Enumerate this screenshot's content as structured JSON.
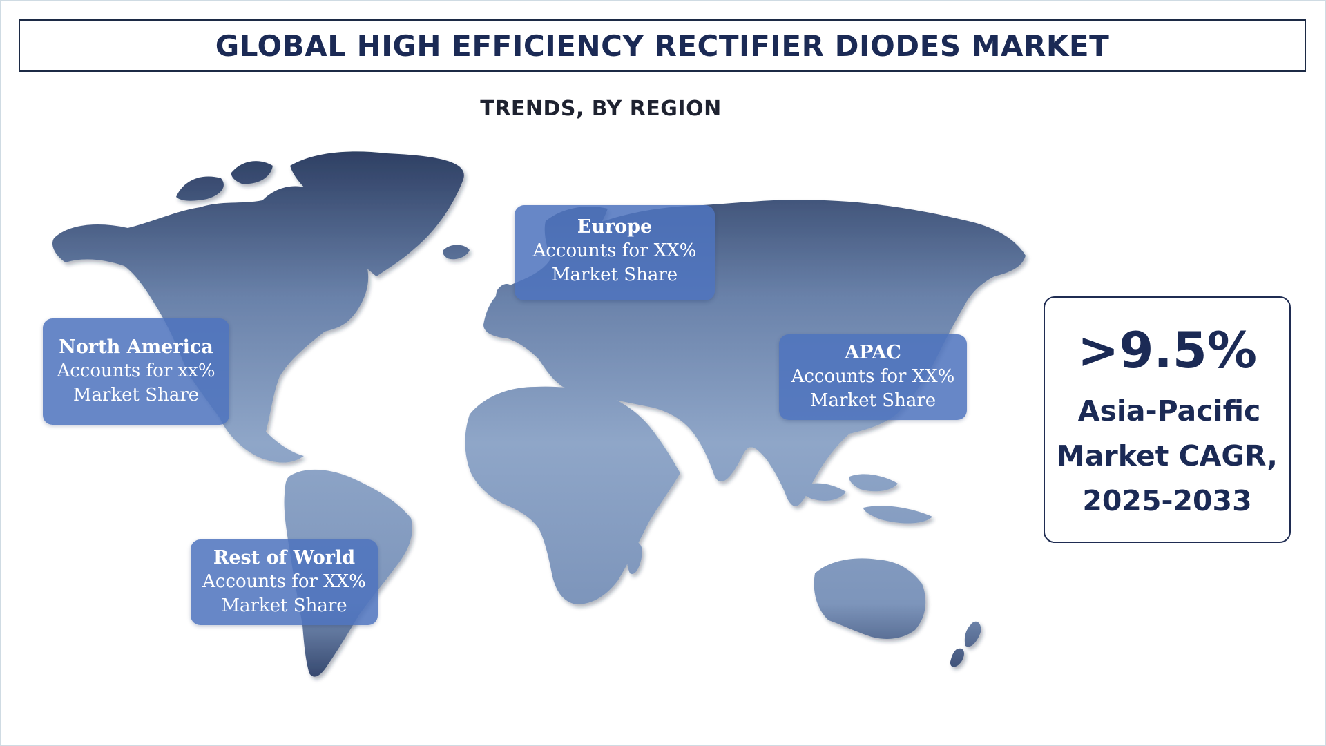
{
  "header": {
    "title": "GLOBAL HIGH EFFICIENCY RECTIFIER DIODES MARKET",
    "subtitle": "TRENDS, BY REGION"
  },
  "map": {
    "fill_top_color": "#2d3e62",
    "fill_bottom_color": "#8fa6c8",
    "callout_color": "#4e73be",
    "regions": {
      "europe": {
        "name": "Europe",
        "line1": "Accounts for XX%",
        "line2": "Market Share"
      },
      "north_america": {
        "name": "North America",
        "line1": "Accounts for xx%",
        "line2": "Market Share"
      },
      "apac": {
        "name": "APAC",
        "line1": "Accounts for XX%",
        "line2": "Market Share"
      },
      "rest_of_world": {
        "name": "Rest of World",
        "line1": "Accounts for XX%",
        "line2": "Market Share"
      }
    }
  },
  "cagr": {
    "value": ">9.5%",
    "line1": "Asia-Pacific",
    "line2": "Market CAGR,",
    "line3": "2025-2033"
  }
}
